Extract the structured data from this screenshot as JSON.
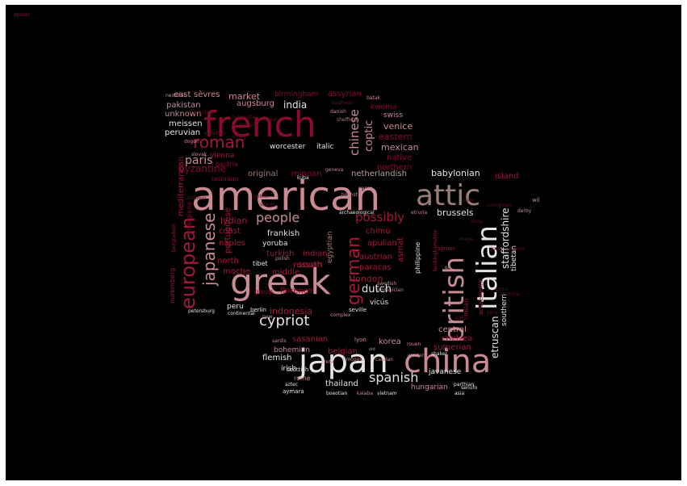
{
  "colors": {
    "background": "#000000",
    "palette": [
      "#8b0a2e",
      "#a01a3c",
      "#c98a94",
      "#9b7f76",
      "#e8e3e0",
      "#b8a09c",
      "#5e1426"
    ]
  },
  "words": [
    {
      "text": "american",
      "color": "#c98a94"
    },
    {
      "text": "greek",
      "color": "#c98a94"
    },
    {
      "text": "japan",
      "color": "#e8e3e0"
    },
    {
      "text": "china",
      "color": "#c98a94"
    },
    {
      "text": "french",
      "color": "#8b0a2e"
    },
    {
      "text": "attic",
      "color": "#9b7f76"
    },
    {
      "text": "british",
      "color": "#c98a94"
    },
    {
      "text": "italian",
      "color": "#e8e3e0"
    },
    {
      "text": "european",
      "color": "#a01a3c"
    },
    {
      "text": "japanese",
      "color": "#c98a94"
    },
    {
      "text": "german",
      "color": "#a01a3c"
    },
    {
      "text": "roman",
      "color": "#a01a3c"
    },
    {
      "text": "cypriot",
      "color": "#e8e3e0"
    },
    {
      "text": "spanish",
      "color": "#e8e3e0"
    },
    {
      "text": "people",
      "color": "#c98a94"
    },
    {
      "text": "possibly",
      "color": "#a01a3c"
    },
    {
      "text": "chinese",
      "color": "#c98a94"
    },
    {
      "text": "coptic",
      "color": "#c98a94"
    },
    {
      "text": "dutch",
      "color": "#e8e3e0"
    },
    {
      "text": "etruscan",
      "color": "#e8e3e0"
    },
    {
      "text": "staffordshire",
      "color": "#e8e3e0"
    },
    {
      "text": "mediterranean",
      "color": "#a01a3c"
    },
    {
      "text": "market",
      "color": "#c98a94"
    },
    {
      "text": "paris",
      "color": "#c98a94"
    },
    {
      "text": "india",
      "color": "#e8e3e0"
    },
    {
      "text": "venice",
      "color": "#c98a94"
    },
    {
      "text": "eastern",
      "color": "#8b0a2e"
    },
    {
      "text": "mexican",
      "color": "#c98a94"
    },
    {
      "text": "native",
      "color": "#8b0a2e"
    },
    {
      "text": "northern",
      "color": "#8b0a2e"
    },
    {
      "text": "babylonian",
      "color": "#e8e3e0"
    },
    {
      "text": "island",
      "color": "#a01a3c"
    },
    {
      "text": "netherlandish",
      "color": "#b8a09c"
    },
    {
      "text": "minoan",
      "color": "#8b0a2e"
    },
    {
      "text": "byzantine",
      "color": "#8b0a2e"
    },
    {
      "text": "original",
      "color": "#9b7f76"
    },
    {
      "text": "brussels",
      "color": "#e8e3e0"
    },
    {
      "text": "korea",
      "color": "#c98a94"
    },
    {
      "text": "thailand",
      "color": "#e8e3e0"
    },
    {
      "text": "hungarian",
      "color": "#c98a94"
    },
    {
      "text": "javanese",
      "color": "#e8e3e0"
    },
    {
      "text": "sumerian",
      "color": "#a01a3c"
    },
    {
      "text": "chelsea",
      "color": "#a01a3c"
    },
    {
      "text": "central",
      "color": "#c98a94"
    },
    {
      "text": "belgian",
      "color": "#a01a3c"
    },
    {
      "text": "flemish",
      "color": "#e8e3e0"
    },
    {
      "text": "irish",
      "color": "#e8e3e0"
    },
    {
      "text": "bohemian",
      "color": "#c98a94"
    },
    {
      "text": "sasanian",
      "color": "#a01a3c"
    },
    {
      "text": "indonesia",
      "color": "#a01a3c"
    },
    {
      "text": "london",
      "color": "#a01a3c"
    },
    {
      "text": "paracas",
      "color": "#a01a3c"
    },
    {
      "text": "austrian",
      "color": "#a01a3c"
    },
    {
      "text": "apulian",
      "color": "#a01a3c"
    },
    {
      "text": "chimú",
      "color": "#a01a3c"
    },
    {
      "text": "south",
      "color": "#a01a3c"
    },
    {
      "text": "turkish",
      "color": "#a01a3c"
    },
    {
      "text": "indian",
      "color": "#a01a3c"
    },
    {
      "text": "russian",
      "color": "#a01a3c"
    },
    {
      "text": "middle",
      "color": "#a01a3c"
    },
    {
      "text": "florence",
      "color": "#8b0a2e"
    },
    {
      "text": "north",
      "color": "#a01a3c"
    },
    {
      "text": "moche",
      "color": "#a01a3c"
    },
    {
      "text": "naples",
      "color": "#a01a3c"
    },
    {
      "text": "lydian",
      "color": "#a01a3c"
    },
    {
      "text": "coast",
      "color": "#a01a3c"
    },
    {
      "text": "frankish",
      "color": "#e8e3e0"
    },
    {
      "text": "yoruba",
      "color": "#e8e3e0"
    },
    {
      "text": "egyptian",
      "color": "#9b7f76"
    },
    {
      "text": "portuguese",
      "color": "#a01a3c"
    },
    {
      "text": "vienna",
      "color": "#a01a3c"
    },
    {
      "text": "bactria",
      "color": "#8b0a2e"
    },
    {
      "text": "laconian",
      "color": "#8b0a2e"
    },
    {
      "text": "margiana",
      "color": "#8b0a2e"
    },
    {
      "text": "worcester",
      "color": "#e8e3e0"
    },
    {
      "text": "italic",
      "color": "#e8e3e0"
    },
    {
      "text": "augsburg",
      "color": "#c98a94"
    },
    {
      "text": "pakistan",
      "color": "#c98a94"
    },
    {
      "text": "unknown",
      "color": "#c98a94"
    },
    {
      "text": "meissen",
      "color": "#e8e3e0"
    },
    {
      "text": "peruvian",
      "color": "#e8e3e0"
    },
    {
      "text": "east",
      "color": "#c98a94"
    },
    {
      "text": "sèvres",
      "color": "#c98a94"
    },
    {
      "text": "birmingham",
      "color": "#8b0a2e"
    },
    {
      "text": "assyrian",
      "color": "#8b0a2e"
    },
    {
      "text": "kwoma",
      "color": "#8b0a2e"
    },
    {
      "text": "swiss",
      "color": "#c98a94"
    },
    {
      "text": "group",
      "color": "#8b0a2e"
    },
    {
      "text": "peru",
      "color": "#e8e3e0"
    },
    {
      "text": "tibet",
      "color": "#e8e3e0"
    },
    {
      "text": "vicús",
      "color": "#e8e3e0"
    },
    {
      "text": "southern",
      "color": "#e8e3e0"
    },
    {
      "text": "tibetan",
      "color": "#e8e3e0"
    },
    {
      "text": "philippine",
      "color": "#e8e3e0"
    },
    {
      "text": "asmat",
      "color": "#a01a3c"
    },
    {
      "text": "nuremberg",
      "color": "#a01a3c"
    },
    {
      "text": "rome",
      "color": "#c98a94"
    },
    {
      "text": "scottish",
      "color": "#e8e3e0"
    },
    {
      "text": "aztec",
      "color": "#e8e3e0"
    },
    {
      "text": "aymara",
      "color": "#e8e3e0"
    },
    {
      "text": "boeotian",
      "color": "#e8e3e0"
    },
    {
      "text": "kalaba",
      "color": "#c98a94"
    },
    {
      "text": "vietnam",
      "color": "#e8e3e0"
    },
    {
      "text": "asia",
      "color": "#e8e3e0"
    },
    {
      "text": "parthian",
      "color": "#e8e3e0"
    },
    {
      "text": "milan",
      "color": "#a01a3c"
    },
    {
      "text": "syrian",
      "color": "#a01a3c"
    },
    {
      "text": "berlin",
      "color": "#e8e3e0"
    },
    {
      "text": "petersburg",
      "color": "#e8e3e0"
    },
    {
      "text": "continental",
      "color": "#e8e3e0"
    },
    {
      "text": "seville",
      "color": "#e8e3e0"
    },
    {
      "text": "complex",
      "color": "#c98a94"
    },
    {
      "text": "lyon",
      "color": "#c98a94"
    },
    {
      "text": "sardis",
      "color": "#c98a94"
    },
    {
      "text": "old",
      "color": "#c98a94"
    },
    {
      "text": "rouen",
      "color": "#c98a94"
    },
    {
      "text": "shaker",
      "color": "#e8e3e0"
    },
    {
      "text": "catalan",
      "color": "#c98a94"
    },
    {
      "text": "limoges",
      "color": "#c98a94"
    },
    {
      "text": "crete",
      "color": "#c98a94"
    },
    {
      "text": "western",
      "color": "#c98a94"
    },
    {
      "text": "senufo",
      "color": "#e8e3e0"
    },
    {
      "text": "archaeological",
      "color": "#e8e3e0"
    },
    {
      "text": "etruria",
      "color": "#c98a94"
    },
    {
      "text": "kuba",
      "color": "#e8e3e0"
    },
    {
      "text": "geneva",
      "color": "#c98a94"
    },
    {
      "text": "nasca",
      "color": "#c98a94"
    },
    {
      "text": "höchst",
      "color": "#c98a94"
    },
    {
      "text": "wil",
      "color": "#c98a94"
    },
    {
      "text": "derby",
      "color": "#c98a94"
    },
    {
      "text": "danish",
      "color": "#c98a94"
    },
    {
      "text": "batak",
      "color": "#c98a94"
    },
    {
      "text": "neolithic",
      "color": "#c98a94"
    },
    {
      "text": "dogon",
      "color": "#c98a94"
    },
    {
      "text": "slovak",
      "color": "#c98a94"
    },
    {
      "text": "buckinghamshire",
      "color": "#a01a3c"
    },
    {
      "text": "en",
      "color": "#c98a94"
    },
    {
      "text": "polish",
      "color": "#c98a94"
    },
    {
      "text": "swedish",
      "color": "#c98a94"
    },
    {
      "text": "phoenician",
      "color": "#c98a94"
    },
    {
      "text": "new",
      "color": "#c98a94"
    },
    {
      "text": "bangladesh",
      "color": "#a01a3c"
    },
    {
      "text": "bauhaus",
      "color": "#5e1426"
    },
    {
      "text": "achaemenid",
      "color": "#a01a3c"
    },
    {
      "text": "sudan",
      "color": "#5e1426"
    },
    {
      "text": "arctic",
      "color": "#5e1426"
    },
    {
      "text": "sheffield",
      "color": "#9b7f76"
    },
    {
      "text": "corinthian",
      "color": "#5e1426"
    },
    {
      "text": "gothic",
      "color": "#5e1426"
    },
    {
      "text": "saxon",
      "color": "#5e1426"
    },
    {
      "text": "celtic",
      "color": "#5e1426"
    },
    {
      "text": "korean",
      "color": "#5e1426"
    },
    {
      "text": "hellenistic",
      "color": "#5e1426"
    },
    {
      "text": "nepal",
      "color": "#5e1426"
    },
    {
      "text": "maya",
      "color": "#5e1426"
    },
    {
      "text": "sicily",
      "color": "#5e1426"
    },
    {
      "text": "iran",
      "color": "#5e1426"
    },
    {
      "text": "holland",
      "color": "#5e1426"
    },
    {
      "text": "venetian",
      "color": "#5e1426"
    },
    {
      "text": "antwerp",
      "color": "#5e1426"
    },
    {
      "text": "tang",
      "color": "#5e1426"
    },
    {
      "text": "dresden",
      "color": "#5e1426"
    },
    {
      "text": "ming",
      "color": "#5e1426"
    },
    {
      "text": "anatolia",
      "color": "#5e1426"
    },
    {
      "text": "kyoto",
      "color": "#5e1426"
    },
    {
      "text": "bronze",
      "color": "#5e1426"
    }
  ]
}
